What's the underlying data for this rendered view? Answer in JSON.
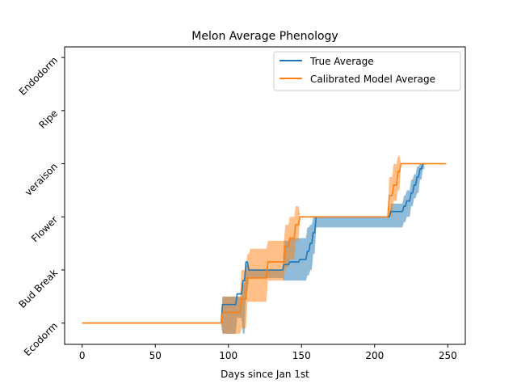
{
  "chart_data": {
    "type": "line",
    "title": "Melon Average Phenology",
    "xlabel": "Days since Jan 1st",
    "ylabel": "",
    "xlim": [
      -12,
      262
    ],
    "ylim": [
      -0.4,
      5.2
    ],
    "x_ticks": [
      0,
      50,
      100,
      150,
      200,
      250
    ],
    "y_ticks": [
      0,
      1,
      2,
      3,
      4,
      5
    ],
    "y_tick_labels": [
      "Ecodorm",
      "Bud Break",
      "Flower",
      "veraison",
      "Ripe",
      "Endodorm"
    ],
    "legend_placement": "upper-right",
    "grid": false,
    "series": [
      {
        "name": "True Average",
        "color": "#1f77b4",
        "x": [
          0,
          95,
          96,
          105,
          106,
          109,
          110,
          111,
          112,
          113,
          114,
          137,
          138,
          141,
          142,
          148,
          149,
          153,
          154,
          155,
          156,
          157,
          158,
          159,
          160,
          210,
          211,
          219,
          220,
          221,
          222,
          224,
          225,
          226,
          227,
          228,
          229,
          230,
          231,
          232,
          233,
          234
        ],
        "y": [
          0,
          0,
          0.35,
          0.35,
          0.55,
          0.55,
          0.8,
          0.8,
          1.15,
          1.15,
          1.0,
          1.0,
          1.1,
          1.1,
          1.15,
          1.15,
          1.2,
          1.2,
          1.35,
          1.35,
          1.5,
          1.5,
          1.7,
          1.7,
          2.0,
          2.0,
          2.1,
          2.1,
          2.2,
          2.2,
          2.3,
          2.3,
          2.45,
          2.45,
          2.6,
          2.6,
          2.75,
          2.75,
          2.9,
          2.9,
          3.0,
          3.0
        ],
        "band_upper": [
          0,
          0,
          0.5,
          0.5,
          0.5,
          0.5,
          0.75,
          0.75,
          1.1,
          1.1,
          1.0,
          1.0,
          1.55,
          1.55,
          1.6,
          1.6,
          1.6,
          1.6,
          1.8,
          1.8,
          1.85,
          1.85,
          2.0,
          2.0,
          2.0,
          2.0,
          2.25,
          2.25,
          2.4,
          2.4,
          2.5,
          2.5,
          2.7,
          2.7,
          2.8,
          2.8,
          2.95,
          2.95,
          3.0,
          3.0,
          3.0,
          3.0
        ],
        "band_lower": [
          0,
          0,
          -0.2,
          -0.2,
          0.1,
          0.1,
          -0.2,
          -0.2,
          0.6,
          0.6,
          0.85,
          0.85,
          0.8,
          0.8,
          0.8,
          0.8,
          0.8,
          0.8,
          0.9,
          0.9,
          1.0,
          1.0,
          1.3,
          1.3,
          1.8,
          1.8,
          1.8,
          1.8,
          1.9,
          1.9,
          2.0,
          2.0,
          2.2,
          2.2,
          2.35,
          2.35,
          2.45,
          2.45,
          2.7,
          2.7,
          2.9,
          2.9
        ]
      },
      {
        "name": "Calibrated Model Average",
        "color": "#ff7f0e",
        "x": [
          0,
          95,
          96,
          108,
          109,
          112,
          113,
          114,
          115,
          126,
          127,
          138,
          139,
          141,
          142,
          145,
          146,
          148,
          149,
          209,
          210,
          212,
          213,
          215,
          216,
          217,
          218,
          249
        ],
        "y": [
          0,
          0,
          0.2,
          0.2,
          0.45,
          0.45,
          0.85,
          0.85,
          0.85,
          0.85,
          1.15,
          1.15,
          1.45,
          1.45,
          1.6,
          1.6,
          1.85,
          1.85,
          2.0,
          2.0,
          2.4,
          2.4,
          2.6,
          2.6,
          2.85,
          2.85,
          3.0,
          3.0
        ],
        "band_upper": [
          0,
          0,
          0.5,
          0.5,
          1.0,
          1.0,
          1.3,
          1.3,
          1.4,
          1.4,
          1.55,
          1.55,
          1.85,
          1.85,
          2.0,
          2.0,
          2.2,
          2.2,
          2.0,
          2.0,
          2.75,
          2.75,
          3.0,
          3.0,
          3.15,
          3.15,
          3.0,
          3.0
        ],
        "band_lower": [
          0,
          0,
          -0.2,
          -0.2,
          -0.1,
          -0.1,
          0.4,
          0.4,
          0.4,
          0.4,
          0.8,
          0.8,
          1.05,
          1.05,
          1.2,
          1.2,
          1.55,
          1.55,
          2.0,
          2.0,
          2.0,
          2.0,
          2.3,
          2.3,
          2.5,
          2.5,
          3.0,
          3.0
        ]
      }
    ]
  }
}
